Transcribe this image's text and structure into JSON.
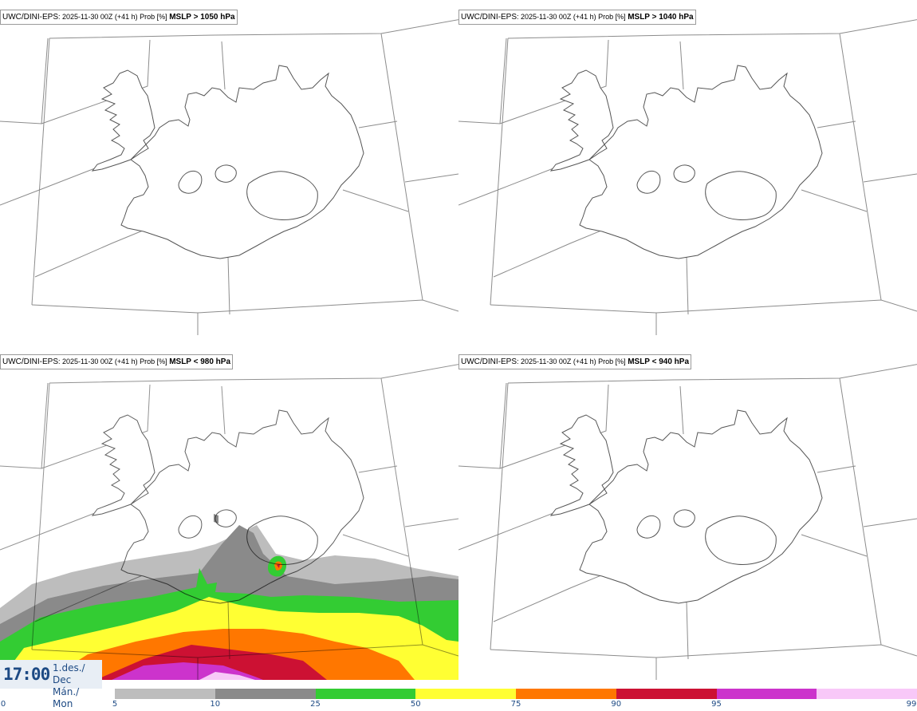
{
  "panels": [
    {
      "model": "UWC/DINI-EPS",
      "run": "2025-11-30 00Z (+41 h) Prob [%]",
      "variable": "MSLP > 1050 hPa"
    },
    {
      "model": "UWC/DINI-EPS",
      "run": "2025-11-30 00Z (+41 h) Prob [%]",
      "variable": "MSLP > 1040 hPa"
    },
    {
      "model": "UWC/DINI-EPS",
      "run": "2025-11-30 00Z (+41 h) Prob [%]",
      "variable": "MSLP < 980 hPa"
    },
    {
      "model": "UWC/DINI-EPS",
      "run": "2025-11-30 00Z (+41 h) Prob [%]",
      "variable": "MSLP < 940 hPa"
    }
  ],
  "valid_time": {
    "time": "17:00",
    "date_line1": "1.des./ Dec",
    "date_line2": "Mán./ Mon"
  },
  "legend": {
    "ticks": [
      "0",
      "5",
      "10",
      "25",
      "50",
      "75",
      "90",
      "95",
      "99"
    ],
    "colors": [
      "#bdbdbd",
      "#8a8a8a",
      "#33cc33",
      "#ffff33",
      "#ff7700",
      "#cc1133",
      "#cc33cc",
      "#f8c8f8"
    ]
  }
}
